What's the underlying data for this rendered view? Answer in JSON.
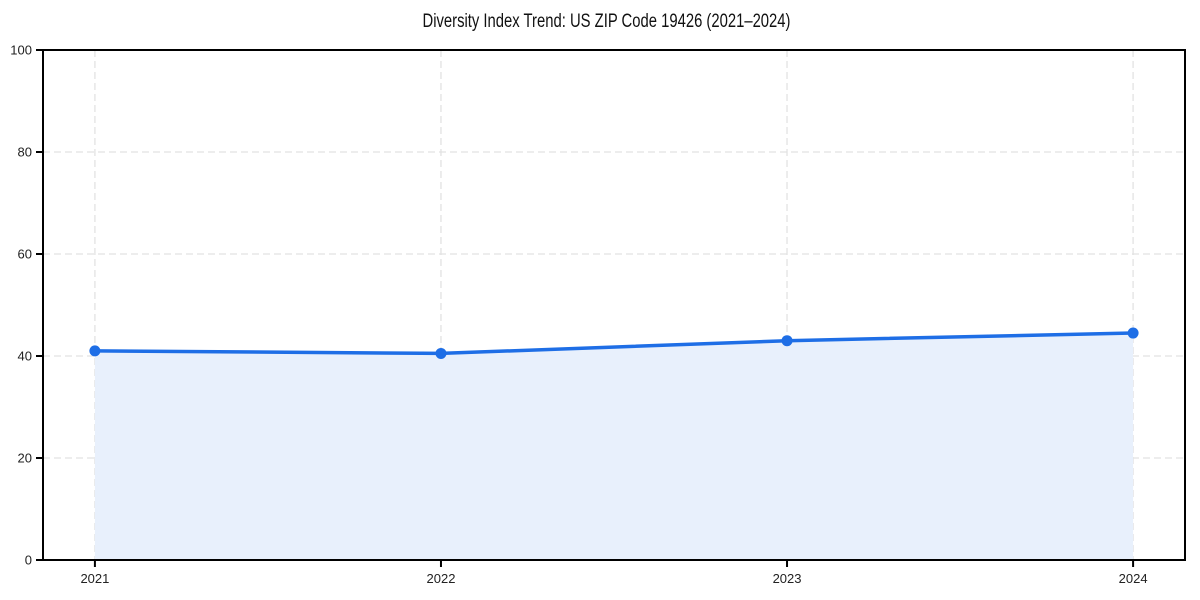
{
  "figure": {
    "background": "#ffffff"
  },
  "chart_data": {
    "type": "area",
    "title": "Diversity Index Trend: US ZIP Code 19426 (2021–2024)",
    "x": [
      2021,
      2022,
      2023,
      2024
    ],
    "x_tick_labels": [
      "2021",
      "2022",
      "2023",
      "2024"
    ],
    "values": [
      41.0,
      40.5,
      43.0,
      44.5
    ],
    "xlabel": "",
    "ylabel": "",
    "ylim": [
      0,
      100
    ],
    "yticks": [
      0,
      20,
      40,
      60,
      80,
      100
    ],
    "y_tick_labels": [
      "0",
      "20",
      "40",
      "60",
      "80",
      "100"
    ],
    "grid": true,
    "grid_style": "dashed",
    "legend": "none",
    "colors": {
      "line": "#1e6ee6",
      "marker": "#1e6ee6",
      "fill": "#e8f0fc",
      "grid": "#e2e2e2",
      "axis": "#000000",
      "tick_text": "#222222",
      "title_text": "#111111"
    }
  }
}
